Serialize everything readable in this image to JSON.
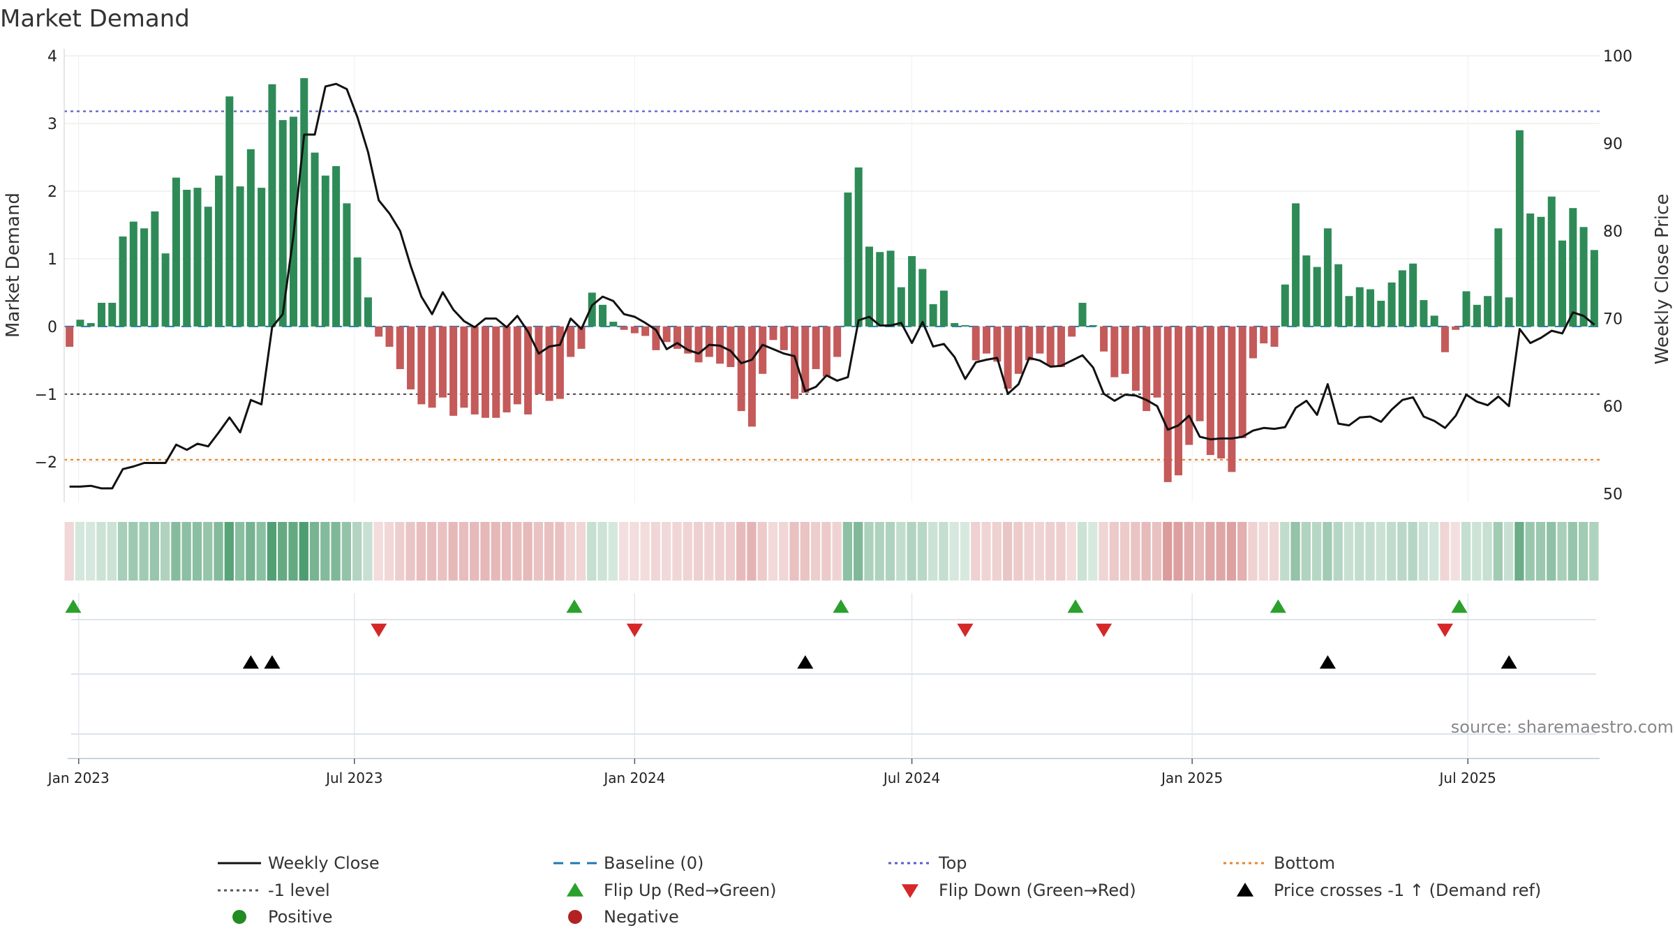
{
  "chart_data": {
    "type": "bar",
    "title": "Market Demand",
    "ylabel_left": "Market Demand",
    "ylabel_right": "Weekly Close Price",
    "ylim_left": [
      -2.6,
      4.0
    ],
    "ylim_right": [
      49,
      100
    ],
    "left_ticks": [
      4,
      3,
      2,
      1,
      0,
      -1,
      -2
    ],
    "left_tick_labels": [
      "4",
      "3",
      "2",
      "1",
      "0",
      "−1",
      "−2"
    ],
    "right_ticks": [
      100,
      90,
      80,
      70,
      60,
      50
    ],
    "right_tick_labels": [
      "100",
      "90",
      "80",
      "70",
      "60",
      "50"
    ],
    "x_tick_labels": [
      "Jan 2023",
      "Jul 2023",
      "Jan 2024",
      "Jul 2024",
      "Jan 2025",
      "Jul 2025"
    ],
    "x_start": "2022-12-26",
    "week_interval": 7,
    "reference_lines": [
      {
        "name": "Top",
        "value": 3.18,
        "color": "#5c5cc9"
      },
      {
        "name": "-1 level",
        "value": -1.0,
        "color": "#555555"
      },
      {
        "name": "Bottom",
        "value": -1.97,
        "color": "#e8862a"
      },
      {
        "name": "Baseline (0)",
        "value": 0.0,
        "color": "#1f77b4"
      }
    ],
    "series": [
      {
        "name": "Market Demand",
        "type": "bar",
        "positive_color": "#2e8b57",
        "negative_color": "#c45a5a",
        "values": [
          -0.3,
          0.1,
          0.05,
          0.35,
          0.35,
          1.33,
          1.55,
          1.45,
          1.7,
          1.08,
          2.2,
          2.02,
          2.05,
          1.77,
          2.23,
          3.4,
          2.07,
          2.62,
          2.05,
          3.58,
          3.05,
          3.1,
          3.67,
          2.57,
          2.23,
          2.37,
          1.82,
          1.02,
          0.43,
          -0.15,
          -0.3,
          -0.63,
          -0.93,
          -1.15,
          -1.2,
          -1.05,
          -1.32,
          -1.2,
          -1.3,
          -1.35,
          -1.35,
          -1.27,
          -1.15,
          -1.3,
          -1.0,
          -1.1,
          -1.07,
          -0.45,
          -0.33,
          0.5,
          0.32,
          0.07,
          -0.05,
          -0.1,
          -0.14,
          -0.35,
          -0.23,
          -0.33,
          -0.4,
          -0.53,
          -0.45,
          -0.55,
          -0.6,
          -1.25,
          -1.48,
          -0.7,
          -0.2,
          -0.35,
          -1.07,
          -0.98,
          -0.63,
          -0.74,
          -0.45,
          1.98,
          2.35,
          1.18,
          1.1,
          1.12,
          0.58,
          1.04,
          0.85,
          0.33,
          0.53,
          0.05,
          0.02,
          -0.5,
          -0.4,
          -0.52,
          -0.92,
          -0.7,
          -0.5,
          -0.4,
          -0.58,
          -0.6,
          -0.15,
          0.35,
          0.02,
          -0.37,
          -0.75,
          -0.7,
          -0.95,
          -1.25,
          -1.05,
          -2.3,
          -2.2,
          -1.75,
          -1.4,
          -1.9,
          -1.95,
          -2.15,
          -1.65,
          -0.47,
          -0.25,
          -0.3,
          0.62,
          1.82,
          1.05,
          0.88,
          1.45,
          0.92,
          0.45,
          0.58,
          0.55,
          0.38,
          0.65,
          0.83,
          0.93,
          0.39,
          0.16,
          -0.38,
          -0.05,
          0.52,
          0.32,
          0.45,
          1.45,
          0.43,
          2.9,
          1.67,
          1.62,
          1.92,
          1.27,
          1.75,
          1.47,
          1.13
        ]
      },
      {
        "name": "Weekly Close",
        "type": "line",
        "color": "#111111",
        "values": [
          50.8,
          50.8,
          50.9,
          50.6,
          50.6,
          52.8,
          53.1,
          53.5,
          53.5,
          53.5,
          55.6,
          55.0,
          55.7,
          55.4,
          57.0,
          58.7,
          57.0,
          60.7,
          60.2,
          69.0,
          70.5,
          79.5,
          91.0,
          91.0,
          96.5,
          96.8,
          96.2,
          93.0,
          89.0,
          83.5,
          82.0,
          80.0,
          76.0,
          72.5,
          70.5,
          73.0,
          71.0,
          69.7,
          69.0,
          70.0,
          70.0,
          69.0,
          70.3,
          68.5,
          66.0,
          66.8,
          67.0,
          70.0,
          68.8,
          71.5,
          72.5,
          72.0,
          70.5,
          70.2,
          69.5,
          68.7,
          66.5,
          67.2,
          66.4,
          66.0,
          67.0,
          66.9,
          66.3,
          64.9,
          65.3,
          67.0,
          66.5,
          66.0,
          65.7,
          61.7,
          62.2,
          63.5,
          62.9,
          63.3,
          69.8,
          70.2,
          69.2,
          69.2,
          69.5,
          67.2,
          69.6,
          66.8,
          67.1,
          65.6,
          63.1,
          65.0,
          65.3,
          65.5,
          61.4,
          62.5,
          65.5,
          65.2,
          64.5,
          64.6,
          65.2,
          65.8,
          64.4,
          61.4,
          60.6,
          61.3,
          61.2,
          60.7,
          60.0,
          57.3,
          57.8,
          58.9,
          56.5,
          56.2,
          56.3,
          56.3,
          56.5,
          57.2,
          57.5,
          57.4,
          57.6,
          59.8,
          60.6,
          59.0,
          62.5,
          58.0,
          57.8,
          58.7,
          58.8,
          58.2,
          59.6,
          60.7,
          61.0,
          58.8,
          58.3,
          57.5,
          58.9,
          61.3,
          60.5,
          60.1,
          61.1,
          60.0,
          68.8,
          67.2,
          67.8,
          68.6,
          68.3,
          70.7,
          70.3,
          69.3
        ]
      }
    ]
  },
  "flip_up_weeks": [
    1,
    48,
    73,
    95,
    114,
    131
  ],
  "flip_down_weeks": [
    29,
    53,
    84,
    97,
    129
  ],
  "price_cross_weeks": [
    17,
    19,
    69,
    118,
    135
  ],
  "colors": {
    "positive": "#2e8b57",
    "negative": "#c45a5a",
    "flip_up": "#2ca02c",
    "flip_down": "#d62728",
    "cross": "#000000",
    "positive_dot": "#228b22",
    "negative_dot": "#b22222",
    "grid": "#e6e6e6"
  },
  "source": "source: sharemaestro.com",
  "legend": [
    {
      "label": "Weekly Close",
      "symbol": "line-solid",
      "color": "#111111"
    },
    {
      "label": "Baseline (0)",
      "symbol": "line-dash",
      "color": "#1f77b4"
    },
    {
      "label": "Top",
      "symbol": "line-dot",
      "color": "#5c5cc9"
    },
    {
      "label": "Bottom",
      "symbol": "line-dot",
      "color": "#e8862a"
    },
    {
      "label": "-1 level",
      "symbol": "line-dot",
      "color": "#555555"
    },
    {
      "label": "Flip Up (Red→Green)",
      "symbol": "triangle-up",
      "color": "#2ca02c"
    },
    {
      "label": "Flip Down (Green→Red)",
      "symbol": "triangle-down",
      "color": "#d62728"
    },
    {
      "label": "Price crosses -1 ↑ (Demand ref)",
      "symbol": "triangle-up",
      "color": "#000000"
    },
    {
      "label": "Positive",
      "symbol": "circle",
      "color": "#228b22"
    },
    {
      "label": "Negative",
      "symbol": "circle",
      "color": "#b22222"
    }
  ]
}
